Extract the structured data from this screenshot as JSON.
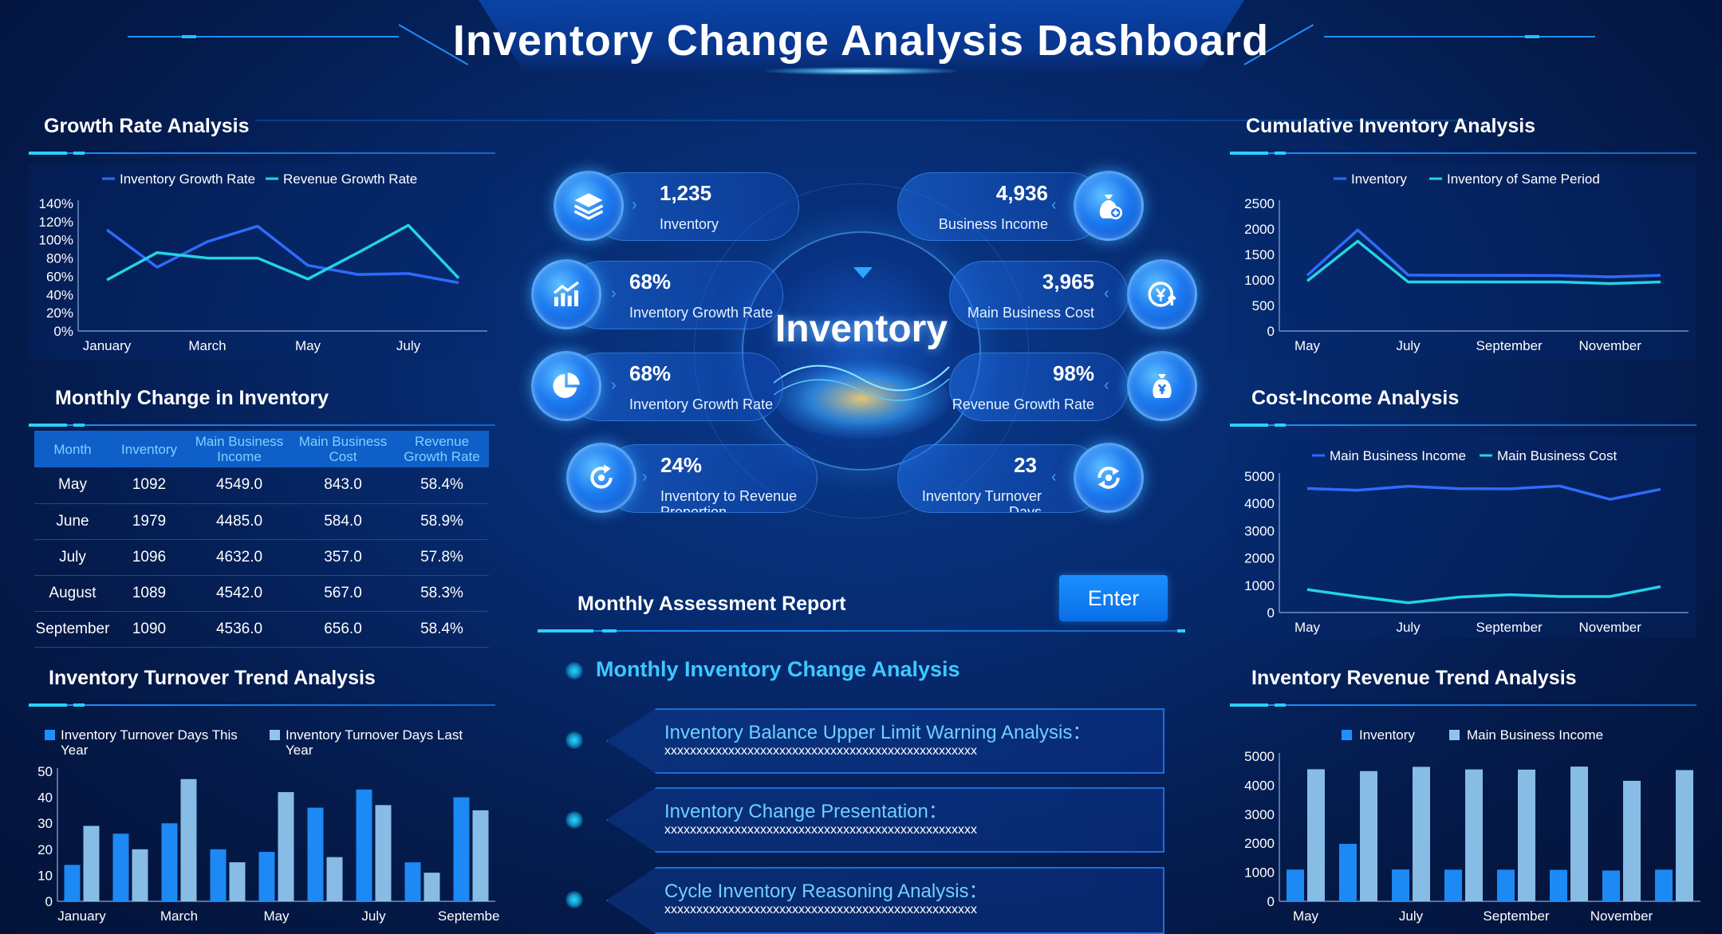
{
  "header": {
    "title": "Inventory Change Analysis Dashboard"
  },
  "growth": {
    "title": "Growth Rate Analysis",
    "chart_data": {
      "type": "line",
      "legend": [
        "Inventory Growth Rate",
        "Revenue Growth Rate"
      ],
      "categories": [
        "January",
        "February",
        "March",
        "April",
        "May",
        "June",
        "July",
        "August"
      ],
      "x_tick_labels": [
        "January",
        "March",
        "May",
        "July"
      ],
      "y_ticks": [
        "0%",
        "20%",
        "40%",
        "60%",
        "80%",
        "100%",
        "120%",
        "140%"
      ],
      "ylim": [
        0,
        140
      ],
      "series": [
        {
          "name": "Inventory Growth Rate",
          "color": "#2e6bff",
          "values": [
            111,
            70,
            98,
            115,
            72,
            62,
            63,
            53
          ]
        },
        {
          "name": "Revenue Growth Rate",
          "color": "#22d3e6",
          "values": [
            56,
            86,
            80,
            80,
            57,
            86,
            116,
            58
          ]
        }
      ]
    }
  },
  "monthly": {
    "title": "Monthly Change in Inventory",
    "columns": [
      "Month",
      "Inventory",
      "Main Business Income",
      "Main Business Cost",
      "Revenue Growth Rate"
    ],
    "rows": [
      [
        "May",
        "1092",
        "4549.0",
        "843.0",
        "58.4%"
      ],
      [
        "June",
        "1979",
        "4485.0",
        "584.0",
        "58.9%"
      ],
      [
        "July",
        "1096",
        "4632.0",
        "357.0",
        "57.8%"
      ],
      [
        "August",
        "1089",
        "4542.0",
        "567.0",
        "58.3%"
      ],
      [
        "September",
        "1090",
        "4536.0",
        "656.0",
        "58.4%"
      ]
    ]
  },
  "turnover": {
    "title": "Inventory Turnover Trend Analysis",
    "chart_data": {
      "type": "bar",
      "legend": [
        "Inventory Turnover Days This Year",
        "Inventory Turnover Days Last Year"
      ],
      "categories": [
        "January",
        "February",
        "March",
        "April",
        "May",
        "June",
        "July",
        "August",
        "September"
      ],
      "x_tick_labels": [
        "January",
        "March",
        "May",
        "July",
        "September"
      ],
      "y_ticks": [
        "0",
        "10",
        "20",
        "30",
        "40",
        "50"
      ],
      "ylim": [
        0,
        50
      ],
      "series": [
        {
          "name": "Inventory Turnover Days This Year",
          "color": "#1e8fff",
          "values": [
            14,
            26,
            30,
            20,
            19,
            36,
            43,
            15,
            40
          ]
        },
        {
          "name": "Inventory Turnover Days Last Year",
          "color": "#8ec5ee",
          "values": [
            29,
            20,
            47,
            15,
            42,
            17,
            37,
            11,
            35
          ]
        }
      ]
    }
  },
  "kpis": {
    "inventory": {
      "value": "1,235",
      "label": "Inventory"
    },
    "business_income": {
      "value": "4,936",
      "label": "Business Income"
    },
    "inv_growth_1": {
      "value": "68%",
      "label": "Inventory Growth Rate"
    },
    "main_cost": {
      "value": "3,965",
      "label": "Main Business Cost"
    },
    "inv_growth_2": {
      "value": "68%",
      "label": "Inventory Growth Rate"
    },
    "rev_growth": {
      "value": "98%",
      "label": "Revenue Growth Rate"
    },
    "inv_rev_prop": {
      "value": "24%",
      "label": "Inventory to Revenue Proportion"
    },
    "turnover_days": {
      "value": "23",
      "label": "Inventory Turnover Days"
    },
    "center_label": "Inventory"
  },
  "report": {
    "title": "Monthly Assessment Report",
    "enter_label": "Enter",
    "subtitle": "Monthly Inventory Change Analysis",
    "items": [
      {
        "title": "Inventory Balance Upper Limit Warning Analysis：",
        "text": "xxxxxxxxxxxxxxxxxxxxxxxxxxxxxxxxxxxxxxxxxxxxxxxxx"
      },
      {
        "title": "Inventory Change Presentation：",
        "text": "xxxxxxxxxxxxxxxxxxxxxxxxxxxxxxxxxxxxxxxxxxxxxxxxx"
      },
      {
        "title": "Cycle Inventory Reasoning Analysis：",
        "text": "xxxxxxxxxxxxxxxxxxxxxxxxxxxxxxxxxxxxxxxxxxxxxxxxx"
      }
    ]
  },
  "cumulative": {
    "title": "Cumulative Inventory Analysis",
    "chart_data": {
      "type": "line",
      "legend": [
        "Inventory",
        "Inventory of Same Period"
      ],
      "categories": [
        "May",
        "June",
        "July",
        "August",
        "September",
        "October",
        "November",
        "December"
      ],
      "x_tick_labels": [
        "May",
        "July",
        "September",
        "November"
      ],
      "y_ticks": [
        "0",
        "500",
        "1000",
        "1500",
        "2000",
        "2500"
      ],
      "ylim": [
        0,
        2500
      ],
      "series": [
        {
          "name": "Inventory",
          "color": "#2e6bff",
          "values": [
            1090,
            1980,
            1096,
            1089,
            1090,
            1085,
            1060,
            1090
          ]
        },
        {
          "name": "Inventory of Same Period",
          "color": "#22d3e6",
          "values": [
            980,
            1760,
            960,
            960,
            960,
            960,
            930,
            960
          ]
        }
      ]
    }
  },
  "cost_income": {
    "title": "Cost-Income Analysis",
    "chart_data": {
      "type": "line",
      "legend": [
        "Main Business Income",
        "Main Business Cost"
      ],
      "categories": [
        "May",
        "June",
        "July",
        "August",
        "September",
        "October",
        "November",
        "December"
      ],
      "x_tick_labels": [
        "May",
        "July",
        "September",
        "November"
      ],
      "y_ticks": [
        "0",
        "1000",
        "2000",
        "3000",
        "4000",
        "5000"
      ],
      "ylim": [
        0,
        5000
      ],
      "series": [
        {
          "name": "Main Business Income",
          "color": "#2e6bff",
          "values": [
            4549,
            4485,
            4632,
            4542,
            4536,
            4640,
            4150,
            4520
          ]
        },
        {
          "name": "Main Business Cost",
          "color": "#22d3e6",
          "values": [
            843,
            584,
            357,
            567,
            656,
            590,
            590,
            950
          ]
        }
      ]
    }
  },
  "revenue_trend": {
    "title": "Inventory Revenue Trend Analysis",
    "chart_data": {
      "type": "bar",
      "legend": [
        "Inventory",
        "Main Business Income"
      ],
      "categories": [
        "May",
        "June",
        "July",
        "August",
        "September",
        "October",
        "November",
        "December"
      ],
      "x_tick_labels": [
        "May",
        "July",
        "September",
        "November"
      ],
      "y_ticks": [
        "0",
        "1000",
        "2000",
        "3000",
        "4000",
        "5000"
      ],
      "ylim": [
        0,
        5000
      ],
      "series": [
        {
          "name": "Inventory",
          "color": "#1e8fff",
          "values": [
            1092,
            1979,
            1096,
            1089,
            1090,
            1085,
            1060,
            1090
          ]
        },
        {
          "name": "Main Business Income",
          "color": "#8ec5ee",
          "values": [
            4549,
            4485,
            4632,
            4542,
            4536,
            4640,
            4150,
            4520
          ]
        }
      ]
    }
  }
}
